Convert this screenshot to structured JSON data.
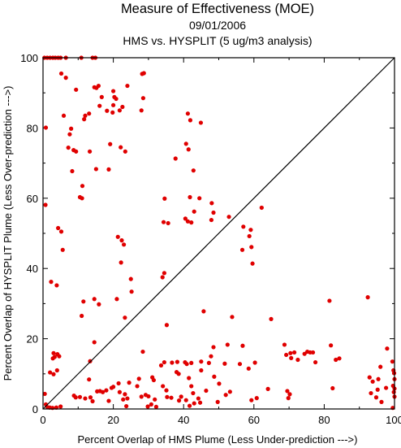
{
  "chart_data": {
    "type": "scatter",
    "title": "Measure of Effectiveness (MOE)",
    "subtitle_date": "09/01/2006",
    "subtitle_analysis": "HMS vs. HYSPLIT  (5 ug/m3 analysis)",
    "xlabel": "Percent Overlap of HMS Plume (Less Under-prediction --->)",
    "ylabel": "Percent Overlap of HYSPLIT Plume (Less Over-prediction --->)",
    "xlim": [
      0,
      100
    ],
    "ylim": [
      0,
      100
    ],
    "xticks": [
      "0",
      "20",
      "40",
      "60",
      "80",
      "100"
    ],
    "yticks": [
      "0",
      "20",
      "40",
      "60",
      "80",
      "100"
    ],
    "diagonal_line": true,
    "grid": false,
    "point_color": "#e00000",
    "axis_color": "#000000",
    "series": [
      {
        "points": [
          [
            0.4,
            100
          ],
          [
            1.2,
            100
          ],
          [
            2.0,
            100
          ],
          [
            2.8,
            100
          ],
          [
            3.5,
            100
          ],
          [
            4.3,
            100
          ],
          [
            5.0,
            100
          ],
          [
            6.5,
            100
          ],
          [
            10.9,
            100
          ],
          [
            14.1,
            100
          ],
          [
            14.9,
            100
          ],
          [
            5.2,
            95.5
          ],
          [
            6.5,
            94.3
          ],
          [
            9.4,
            90.9
          ],
          [
            12.0,
            83.5
          ],
          [
            11.7,
            82.5
          ],
          [
            14.6,
            91.6
          ],
          [
            15.2,
            91.4
          ],
          [
            15.8,
            92.0
          ],
          [
            16.7,
            88.8
          ],
          [
            20.0,
            90.5
          ],
          [
            20.3,
            88.8
          ],
          [
            20.8,
            88.3
          ],
          [
            20.0,
            86.5
          ],
          [
            24.0,
            92.0
          ],
          [
            28.2,
            95.4
          ],
          [
            28.7,
            95.6
          ],
          [
            28.0,
            85.0
          ],
          [
            28.5,
            88.5
          ],
          [
            16.1,
            86.3
          ],
          [
            18.2,
            84.9
          ],
          [
            19.8,
            84.4
          ],
          [
            21.8,
            85.0
          ],
          [
            22.6,
            86.0
          ],
          [
            13.1,
            84.1
          ],
          [
            5.9,
            83.5
          ],
          [
            0.8,
            80.1
          ],
          [
            8.0,
            79.8
          ],
          [
            7.6,
            78.2
          ],
          [
            13.3,
            73.3
          ],
          [
            19.1,
            75.4
          ],
          [
            22.1,
            74.5
          ],
          [
            23.4,
            73.3
          ],
          [
            7.2,
            74.4
          ],
          [
            8.7,
            73.7
          ],
          [
            9.4,
            73.3
          ],
          [
            15.1,
            68.3
          ],
          [
            18.7,
            68.2
          ],
          [
            8.3,
            67.7
          ],
          [
            11.2,
            63.5
          ],
          [
            10.5,
            60.3
          ],
          [
            11.1,
            60.0
          ],
          [
            0.7,
            58.1
          ],
          [
            4.3,
            51.5
          ],
          [
            5.2,
            50.5
          ],
          [
            5.6,
            45.3
          ],
          [
            21.3,
            49.0
          ],
          [
            22.4,
            48.0
          ],
          [
            23.0,
            46.8
          ],
          [
            22.2,
            41.7
          ],
          [
            25.0,
            37.0
          ],
          [
            25.2,
            33.4
          ],
          [
            23.3,
            26.0
          ],
          [
            21.0,
            31.3
          ],
          [
            14.6,
            31.3
          ],
          [
            11.5,
            30.6
          ],
          [
            15.9,
            29.8
          ],
          [
            11.0,
            26.5
          ],
          [
            14.6,
            19.0
          ],
          [
            2.3,
            36.2
          ],
          [
            3.9,
            35.2
          ],
          [
            34.0,
            37.5
          ],
          [
            34.5,
            38.7
          ],
          [
            34.3,
            53.2
          ],
          [
            34.6,
            59.9
          ],
          [
            35.6,
            52.9
          ],
          [
            37.7,
            71.3
          ],
          [
            35.2,
            23.9
          ],
          [
            41.2,
            84.1
          ],
          [
            41.9,
            82.2
          ],
          [
            44.9,
            81.5
          ],
          [
            40.7,
            75.5
          ],
          [
            41.4,
            73.9
          ],
          [
            42.8,
            67.9
          ],
          [
            40.5,
            54.2
          ],
          [
            41.2,
            53.4
          ],
          [
            42.2,
            53.1
          ],
          [
            41.8,
            60.3
          ],
          [
            43.0,
            56.2
          ],
          [
            44.5,
            60.0
          ],
          [
            48.0,
            58.6
          ],
          [
            47.9,
            53.8
          ],
          [
            48.5,
            55.9
          ],
          [
            52.9,
            54.7
          ],
          [
            56.7,
            45.3
          ],
          [
            57.0,
            51.9
          ],
          [
            58.7,
            49.2
          ],
          [
            59.1,
            51.0
          ],
          [
            59.3,
            46.1
          ],
          [
            59.6,
            41.4
          ],
          [
            62.2,
            57.3
          ],
          [
            3.0,
            15.9
          ],
          [
            3.3,
            14.8
          ],
          [
            4.1,
            15.6
          ],
          [
            4.6,
            15.0
          ],
          [
            2.8,
            14.4
          ],
          [
            2.0,
            10.4
          ],
          [
            4.0,
            11.0
          ],
          [
            3.0,
            9.9
          ],
          [
            0.5,
            4.3
          ],
          [
            0.8,
            1.3
          ],
          [
            1.3,
            0.5
          ],
          [
            1.9,
            0.4
          ],
          [
            2.7,
            0.3
          ],
          [
            3.8,
            0.4
          ],
          [
            5.0,
            0.7
          ],
          [
            8.8,
            3.8
          ],
          [
            9.3,
            3.3
          ],
          [
            10.5,
            3.4
          ],
          [
            12.0,
            3.0
          ],
          [
            13.1,
            8.4
          ],
          [
            14.1,
            2.2
          ],
          [
            13.5,
            3.3
          ],
          [
            13.4,
            13.6
          ],
          [
            15.4,
            5.0
          ],
          [
            16.2,
            5.1
          ],
          [
            17.0,
            4.8
          ],
          [
            18.0,
            5.3
          ],
          [
            18.7,
            2.3
          ],
          [
            19.5,
            6.0
          ],
          [
            20.0,
            6.3
          ],
          [
            21.8,
            4.8
          ],
          [
            21.5,
            7.3
          ],
          [
            22.8,
            2.7
          ],
          [
            23.3,
            4.2
          ],
          [
            24.0,
            3.0
          ],
          [
            24.5,
            7.5
          ],
          [
            23.7,
            0.8
          ],
          [
            26.8,
            6.5
          ],
          [
            28.4,
            16.3
          ],
          [
            27.3,
            8.6
          ],
          [
            28.0,
            3.5
          ],
          [
            29.2,
            4.0
          ],
          [
            29.8,
            0.7
          ],
          [
            30.0,
            3.6
          ],
          [
            30.8,
            1.3
          ],
          [
            31.8,
            2.7
          ],
          [
            32.2,
            0.6
          ],
          [
            31.1,
            9.0
          ],
          [
            31.5,
            8.2
          ],
          [
            33.6,
            12.4
          ],
          [
            34.5,
            13.3
          ],
          [
            34.1,
            6.5
          ],
          [
            35.1,
            5.3
          ],
          [
            36.7,
            13.2
          ],
          [
            35.3,
            3.4
          ],
          [
            36.5,
            3.2
          ],
          [
            38.2,
            13.4
          ],
          [
            38.0,
            10.5
          ],
          [
            38.6,
            10.0
          ],
          [
            38.7,
            2.4
          ],
          [
            39.3,
            3.5
          ],
          [
            40.9,
            12.8
          ],
          [
            40.4,
            13.3
          ],
          [
            41.5,
            8.8
          ],
          [
            40.7,
            2.5
          ],
          [
            41.7,
            0.9
          ],
          [
            42.2,
            6.5
          ],
          [
            42.7,
            4.5
          ],
          [
            43.0,
            1.6
          ],
          [
            42.2,
            13.1
          ],
          [
            45.0,
            13.5
          ],
          [
            45.0,
            11.0
          ],
          [
            44.2,
            3.0
          ],
          [
            44.7,
            1.8
          ],
          [
            45.7,
            27.8
          ],
          [
            46.4,
            5.2
          ],
          [
            47.2,
            13.1
          ],
          [
            47.8,
            15.0
          ],
          [
            48.5,
            17.6
          ],
          [
            49.7,
            2.0
          ],
          [
            48.7,
            9.2
          ],
          [
            50.1,
            7.2
          ],
          [
            51.7,
            12.9
          ],
          [
            52.5,
            18.3
          ],
          [
            52.0,
            4.0
          ],
          [
            53.2,
            4.9
          ],
          [
            53.8,
            26.2
          ],
          [
            56.0,
            12.8
          ],
          [
            56.8,
            18.0
          ],
          [
            58.5,
            11.5
          ],
          [
            59.3,
            2.5
          ],
          [
            60.3,
            13.2
          ],
          [
            60.8,
            3.1
          ],
          [
            64.9,
            25.6
          ],
          [
            64.0,
            5.7
          ],
          [
            68.7,
            18.3
          ],
          [
            69.2,
            15.4
          ],
          [
            69.5,
            5.1
          ],
          [
            70.2,
            4.2
          ],
          [
            69.8,
            3.1
          ],
          [
            70.4,
            15.9
          ],
          [
            70.6,
            14.5
          ],
          [
            71.5,
            16.1
          ],
          [
            72.5,
            14.0
          ],
          [
            74.4,
            15.7
          ],
          [
            75.2,
            16.3
          ],
          [
            76.0,
            16.1
          ],
          [
            76.8,
            16.1
          ],
          [
            77.5,
            13.3
          ],
          [
            81.5,
            30.8
          ],
          [
            81.9,
            18.1
          ],
          [
            82.4,
            5.9
          ],
          [
            83.3,
            14.0
          ],
          [
            84.3,
            14.4
          ],
          [
            92.4,
            31.8
          ],
          [
            92.9,
            9.0
          ],
          [
            93.3,
            4.5
          ],
          [
            93.8,
            7.8
          ],
          [
            94.8,
            3.3
          ],
          [
            95.2,
            5.5
          ],
          [
            95.4,
            8.5
          ],
          [
            96.0,
            12.0
          ],
          [
            96.3,
            2.0
          ],
          [
            97.6,
            6.0
          ],
          [
            97.9,
            17.2
          ],
          [
            99.4,
            13.5
          ],
          [
            99.7,
            11.0
          ],
          [
            99.9,
            10.2
          ],
          [
            100,
            8.5
          ],
          [
            99.6,
            6.6
          ],
          [
            100,
            5.8
          ],
          [
            99.8,
            4.8
          ],
          [
            100,
            3.5
          ],
          [
            99.5,
            0.3
          ]
        ]
      }
    ]
  }
}
